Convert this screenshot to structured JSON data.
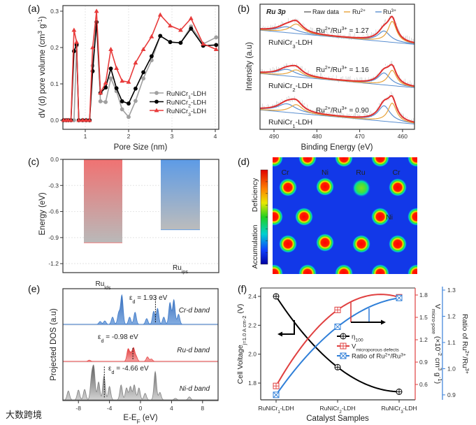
{
  "figure": {
    "panel_labels": [
      "(a)",
      "(b)",
      "(c)",
      "(d)",
      "(e)",
      "(f)"
    ],
    "watermark": "大数跨境"
  },
  "chart_data": [
    {
      "panel": "(a)",
      "type": "line",
      "xlabel": "Pore Size (nm)",
      "ylabel": [
        [
          "dV (d) pore volume (cm",
          ""
        ],
        [
          "3",
          "sup"
        ],
        [
          " g",
          ""
        ],
        [
          "-1",
          "sup"
        ],
        [
          ")",
          ""
        ]
      ],
      "xlim": [
        0.5,
        4.05
      ],
      "ylim": [
        -0.025,
        0.32
      ],
      "xticks": [
        1,
        2,
        3,
        4
      ],
      "xtick_labels": [
        "1",
        "2",
        "3",
        "4"
      ],
      "yticks": [
        0,
        0.1,
        0.2,
        0.3
      ],
      "ytick_labels": [
        "0.0",
        "0.1",
        "0.2",
        "0.3"
      ],
      "grid": true,
      "legend_position": "lower-right",
      "x": [
        0.5,
        0.56,
        0.61,
        0.67,
        0.74,
        0.8,
        0.85,
        0.94,
        1.02,
        1.1,
        1.17,
        1.26,
        1.35,
        1.47,
        1.59,
        1.72,
        1.85,
        2.0,
        2.16,
        2.34,
        2.53,
        2.73,
        2.96,
        3.2,
        3.44,
        3.72,
        4.02
      ],
      "series": [
        {
          "name": [
            [
              "RuNiCr",
              ""
            ],
            [
              "1",
              "sub"
            ],
            [
              "-LDH",
              ""
            ]
          ],
          "color": "#a0a0a0",
          "marker": "circle",
          "values": [
            0,
            0,
            0,
            0,
            0,
            0.205,
            0,
            0,
            0,
            0,
            0.15,
            0.27,
            0.052,
            0.05,
            0.115,
            0.08,
            0.03,
            0.009,
            0.053,
            0.115,
            0.165,
            0.232,
            0.215,
            0.213,
            0.258,
            0.21,
            0.228
          ]
        },
        {
          "name": [
            [
              "RuNiCr",
              ""
            ],
            [
              "2",
              "sub"
            ],
            [
              "-LDH",
              ""
            ]
          ],
          "color": "#000000",
          "marker": "circle",
          "values": [
            0,
            0,
            0,
            0,
            0.19,
            0.208,
            0,
            0,
            0,
            0,
            0.135,
            0.27,
            0.075,
            0.09,
            0.142,
            0.088,
            0.052,
            0.046,
            0.087,
            0.132,
            0.176,
            0.232,
            0.215,
            0.213,
            0.252,
            0.205,
            0.207
          ]
        },
        {
          "name": [
            [
              "RuNiCr",
              ""
            ],
            [
              "3",
              "sub"
            ],
            [
              "-LDH",
              ""
            ]
          ],
          "color": "#e83b3b",
          "marker": "triangle",
          "values": [
            0,
            0,
            0,
            0,
            0.248,
            0.215,
            0,
            0,
            0,
            0,
            0.2,
            0.3,
            0.075,
            0.103,
            0.195,
            0.143,
            0.108,
            0.105,
            0.158,
            0.195,
            0.23,
            0.29,
            0.26,
            0.248,
            0.28,
            0.21,
            0.195
          ]
        }
      ]
    },
    {
      "panel": "(b)",
      "type": "line",
      "title": "Ru 3p",
      "xlabel": "Binding Energy (eV)",
      "ylabel": "Intensity (a.u)",
      "xlim": [
        493.3,
        457.2
      ],
      "xticks": [
        490,
        480,
        470,
        460
      ],
      "xtick_labels": [
        "490",
        "480",
        "470",
        "460"
      ],
      "legend": [
        {
          "label": [
            [
              "Raw data",
              ""
            ]
          ],
          "color": "#666666"
        },
        {
          "label": [
            [
              "Ru",
              ""
            ],
            [
              "2+",
              "sup"
            ]
          ],
          "color": "#e8a33a"
        },
        {
          "label": [
            [
              "Ru",
              ""
            ],
            [
              "3+",
              "sup"
            ]
          ],
          "color": "#5b8fd0"
        }
      ],
      "envelope_color": "#e03030",
      "peak_centers": {
        "ru2": [
          462.4,
          484.8
        ],
        "ru3": [
          464.3,
          487.0
        ]
      },
      "samples": [
        {
          "label": [
            [
              "RuNiCr",
              ""
            ],
            [
              "3",
              "sub"
            ],
            [
              "-LDH",
              ""
            ]
          ],
          "ratio": [
            [
              "Ru",
              ""
            ],
            [
              "2+",
              "sup"
            ],
            [
              "/Ru",
              ""
            ],
            [
              "3+",
              "sup"
            ],
            [
              " = 1.27",
              ""
            ]
          ],
          "ru2_amp": 30,
          "ru3_amp": 15
        },
        {
          "label": [
            [
              "RuNiCr",
              ""
            ],
            [
              "2",
              "sub"
            ],
            [
              "-LDH",
              ""
            ]
          ],
          "ratio": [
            [
              "Ru",
              ""
            ],
            [
              "2+",
              "sup"
            ],
            [
              "/Ru",
              ""
            ],
            [
              "3+",
              "sup"
            ],
            [
              " = 1.16",
              ""
            ]
          ],
          "ru2_amp": 22,
          "ru3_amp": 17
        },
        {
          "label": [
            [
              "RuNiCr",
              ""
            ],
            [
              "1",
              "sub"
            ],
            [
              "-LDH",
              ""
            ]
          ],
          "ratio": [
            [
              "Ru",
              ""
            ],
            [
              "2+",
              "sup"
            ],
            [
              "/Ru",
              ""
            ],
            [
              "3+",
              "sup"
            ],
            [
              " = 0.90",
              ""
            ]
          ],
          "ru2_amp": 27,
          "ru3_amp": 22
        }
      ]
    },
    {
      "panel": "(c)",
      "type": "bar",
      "ylabel": "Energy (eV)",
      "ylim": [
        -1.3,
        0
      ],
      "yticks": [
        0,
        -0.3,
        -0.6,
        -0.9,
        -1.2
      ],
      "ytick_labels": [
        "0.0",
        "-0.3",
        "-0.6",
        "-0.9",
        "-1.2"
      ],
      "categories": [
        [
          [
            "Ru",
            ""
          ],
          [
            "lds",
            "sub"
          ]
        ],
        [
          [
            "Ru",
            ""
          ],
          [
            "ips",
            "sub"
          ]
        ]
      ],
      "values": [
        -0.96,
        -0.81
      ],
      "colors": [
        "#f07272",
        "#5d9be6"
      ]
    },
    {
      "panel": "(d)",
      "type": "heatmap",
      "colorbar_top_label": "Deficiency",
      "colorbar_bottom_label": "Accumulation",
      "atom_labels": [
        "Cr",
        "Ni",
        "Ru",
        "Cr",
        "Ni"
      ]
    },
    {
      "panel": "(e)",
      "type": "area",
      "xlabel": [
        [
          "E-E",
          ""
        ],
        [
          "F",
          "sub"
        ],
        [
          " (eV)",
          ""
        ]
      ],
      "ylabel": "Projected DOS (a.u)",
      "xlim": [
        -10,
        10
      ],
      "xticks": [
        -8,
        -4,
        0,
        4,
        8
      ],
      "xtick_labels": [
        "-8",
        "-4",
        "0",
        "4",
        "8"
      ],
      "bands": [
        {
          "name": "Cr-d band",
          "color": "#3a78c8",
          "eps": 1.93,
          "eps_label": [
            [
              "ε",
              ""
            ],
            [
              "d",
              "sub"
            ],
            [
              " = 1.93 eV",
              ""
            ]
          ],
          "peaks": [
            [
              -5.2,
              0.1
            ],
            [
              -4.6,
              0.12
            ],
            [
              -3.6,
              0.25
            ],
            [
              -2.8,
              0.4
            ],
            [
              -2.4,
              1.0
            ],
            [
              -1.4,
              0.25
            ],
            [
              -0.7,
              0.42
            ],
            [
              0.8,
              0.2
            ],
            [
              1.7,
              0.45
            ],
            [
              2.2,
              0.55
            ],
            [
              3.0,
              0.25
            ],
            [
              3.8,
              0.75
            ],
            [
              4.3,
              0.85
            ],
            [
              4.9,
              0.35
            ]
          ]
        },
        {
          "name": "Ru-d band",
          "color": "#e84545",
          "eps": -0.98,
          "eps_label": [
            [
              "ε",
              ""
            ],
            [
              "d",
              "sub"
            ],
            [
              " = -0.98 eV",
              ""
            ]
          ],
          "peaks": [
            [
              -6.6,
              0.08
            ],
            [
              -1.6,
              0.75
            ],
            [
              -1.25,
              0.45
            ],
            [
              -0.9,
              0.8
            ],
            [
              -0.55,
              0.3
            ],
            [
              0.9,
              0.28
            ],
            [
              1.4,
              0.15
            ]
          ]
        },
        {
          "name": "Ni-d band",
          "color": "#808080",
          "eps": -4.66,
          "eps_label": [
            [
              "ε",
              ""
            ],
            [
              "d",
              "sub"
            ],
            [
              " = -4.66 eV",
              ""
            ]
          ],
          "peaks": [
            [
              -9.3,
              0.3
            ],
            [
              -8.0,
              0.33
            ],
            [
              -7.2,
              0.35
            ],
            [
              -6.3,
              0.75
            ],
            [
              -6.0,
              1.0
            ],
            [
              -5.4,
              0.6
            ],
            [
              -4.7,
              0.8
            ],
            [
              -4.0,
              0.45
            ],
            [
              -2.5,
              0.5
            ],
            [
              -1.8,
              0.4
            ],
            [
              -1.3,
              0.45
            ],
            [
              -0.8,
              0.5
            ],
            [
              -0.2,
              0.4
            ],
            [
              0.6,
              0.22
            ],
            [
              1.9,
              0.95
            ],
            [
              2.5,
              0.25
            ],
            [
              4.5,
              0.05
            ],
            [
              6.3,
              0.1
            ]
          ]
        }
      ]
    },
    {
      "panel": "(f)",
      "type": "line",
      "xlabel": "Catalyst Samples",
      "categories": [
        [
          [
            "RuNiCr",
            ""
          ],
          [
            "1",
            "sub"
          ],
          [
            "-LDH",
            ""
          ]
        ],
        [
          [
            "RuNiCr",
            ""
          ],
          [
            "2",
            "sub"
          ],
          [
            "-LDH",
            ""
          ]
        ],
        [
          [
            "RuNiCr",
            ""
          ],
          [
            "3",
            "sub"
          ],
          [
            "-LDH",
            ""
          ]
        ]
      ],
      "y_left": {
        "label": [
          [
            "Cell Voltage",
            ""
          ],
          [
            "j=1.0 A cm",
            "sub"
          ],
          [
            "-2",
            "sub"
          ],
          [
            " (V)",
            ""
          ]
        ],
        "lim": [
          1.684,
          2.458
        ],
        "ticks": [
          1.8,
          2.0,
          2.2,
          2.4
        ],
        "tick_labels": [
          "1.8",
          "2.0",
          "2.2",
          "2.4"
        ]
      },
      "y_right1": {
        "label": [
          [
            "V",
            ""
          ],
          [
            "micro-pore",
            "sub"
          ],
          [
            " (×10",
            ""
          ],
          [
            "-2",
            "sup"
          ],
          [
            " cm",
            ""
          ],
          [
            "3",
            "sup"
          ],
          [
            " g",
            ""
          ],
          [
            "-1",
            "sup"
          ],
          [
            ")",
            ""
          ]
        ],
        "lim": [
          0.394,
          1.894
        ],
        "ticks": [
          0.6,
          0.9,
          1.2,
          1.5,
          1.8
        ],
        "tick_labels": [
          "0.6",
          "0.9",
          "1.2",
          "1.5",
          "1.8"
        ],
        "color": "#e04040"
      },
      "y_right2": {
        "label": [
          [
            "Ratio of Ru",
            ""
          ],
          [
            "2+",
            "sup"
          ],
          [
            "/Ru",
            ""
          ],
          [
            "3+",
            "sup"
          ]
        ],
        "lim": [
          0.881,
          1.308
        ],
        "ticks": [
          0.9,
          1.0,
          1.1,
          1.2,
          1.3
        ],
        "tick_labels": [
          "0.9",
          "1.0",
          "1.1",
          "1.2",
          "1.3"
        ],
        "color": "#3a80d8"
      },
      "series": [
        {
          "name": [
            [
              "η",
              ""
            ],
            [
              "100",
              "sub"
            ]
          ],
          "axis": "left",
          "color": "#000000",
          "marker": "circle-plus",
          "values": [
            2.4,
            1.91,
            1.74
          ]
        },
        {
          "name": [
            [
              "V",
              ""
            ],
            [
              "microporous  defects",
              "sub"
            ]
          ],
          "axis": "right1",
          "color": "#e04040",
          "marker": "square-plus",
          "values": [
            0.58,
            1.6,
            1.77
          ]
        },
        {
          "name": [
            [
              "Ratio of Ru",
              ""
            ],
            [
              "2+",
              "sup"
            ],
            [
              "/Ru",
              ""
            ],
            [
              "3+",
              "sup"
            ]
          ],
          "axis": "right2",
          "color": "#2f7fd8",
          "marker": "square-x",
          "values": [
            0.9,
            1.16,
            1.27
          ]
        }
      ],
      "legend_position": "center"
    }
  ]
}
